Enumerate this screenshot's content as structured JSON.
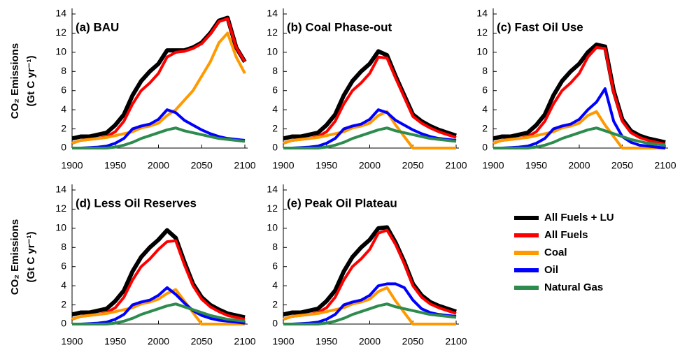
{
  "legend": [
    {
      "name": "All Fuels + LU",
      "color": "#000000"
    },
    {
      "name": "All Fuels",
      "color": "#ff0000"
    },
    {
      "name": "Coal",
      "color": "#ff9900"
    },
    {
      "name": "Oil",
      "color": "#0000ff"
    },
    {
      "name": "Natural Gas",
      "color": "#2e8b4e"
    }
  ],
  "chart_data": [
    {
      "type": "line",
      "title": "(a) BAU",
      "ylabel": [
        "CO₂ Emissions",
        "(Gt C yr⁻¹)"
      ],
      "x": [
        1900,
        1910,
        1920,
        1930,
        1940,
        1950,
        1960,
        1970,
        1980,
        1990,
        2000,
        2010,
        2020,
        2030,
        2040,
        2050,
        2060,
        2070,
        2080,
        2090,
        2100
      ],
      "xlim": [
        1900,
        2100
      ],
      "xticks": [
        1900,
        1950,
        2000,
        2050,
        2100
      ],
      "ylim": [
        0,
        14
      ],
      "yticks": [
        0,
        2,
        4,
        6,
        8,
        10,
        12,
        14
      ],
      "series": [
        {
          "values": [
            1.0,
            1.2,
            1.2,
            1.4,
            1.6,
            2.4,
            3.5,
            5.5,
            7.0,
            8.0,
            8.8,
            10.2,
            10.2,
            10.2,
            10.5,
            11.0,
            12.0,
            13.3,
            13.6,
            10.5,
            9.0
          ]
        },
        {
          "values": [
            0.5,
            0.8,
            0.9,
            1.0,
            1.2,
            1.7,
            2.8,
            4.6,
            6.0,
            6.8,
            7.8,
            9.5,
            10.0,
            10.1,
            10.4,
            10.9,
            11.9,
            13.2,
            13.5,
            10.5,
            9.0
          ]
        },
        {
          "values": [
            0.5,
            0.8,
            0.9,
            1.0,
            1.1,
            1.3,
            1.5,
            1.7,
            2.1,
            2.3,
            2.6,
            3.4,
            4.0,
            5.0,
            6.0,
            7.5,
            9.0,
            11.0,
            12.0,
            9.5,
            7.8
          ]
        },
        {
          "values": [
            0,
            0,
            0.05,
            0.1,
            0.2,
            0.5,
            1.0,
            2.0,
            2.3,
            2.5,
            3.0,
            4.0,
            3.7,
            2.9,
            2.4,
            1.9,
            1.5,
            1.2,
            1.0,
            0.9,
            0.8
          ]
        },
        {
          "values": [
            0,
            0,
            0,
            0,
            0,
            0.1,
            0.3,
            0.6,
            1.0,
            1.3,
            1.6,
            1.9,
            2.1,
            1.8,
            1.6,
            1.4,
            1.2,
            1.0,
            0.9,
            0.8,
            0.7
          ]
        }
      ]
    },
    {
      "type": "line",
      "title": "(b) Coal Phase-out",
      "x": [
        1900,
        1910,
        1920,
        1930,
        1940,
        1950,
        1960,
        1970,
        1980,
        1990,
        2000,
        2010,
        2020,
        2030,
        2040,
        2050,
        2060,
        2070,
        2080,
        2090,
        2100
      ],
      "xlim": [
        1900,
        2100
      ],
      "xticks": [
        1900,
        1950,
        2000,
        2050,
        2100
      ],
      "ylim": [
        0,
        14
      ],
      "yticks": [
        0,
        2,
        4,
        6,
        8,
        10,
        12,
        14
      ],
      "series": [
        {
          "values": [
            1.0,
            1.2,
            1.2,
            1.4,
            1.6,
            2.4,
            3.5,
            5.5,
            7.0,
            8.0,
            8.8,
            10.1,
            9.7,
            7.5,
            5.5,
            3.5,
            2.8,
            2.3,
            1.9,
            1.6,
            1.3
          ]
        },
        {
          "values": [
            0.5,
            0.8,
            0.9,
            1.0,
            1.2,
            1.7,
            2.8,
            4.6,
            6.0,
            6.8,
            7.8,
            9.5,
            9.4,
            7.3,
            5.3,
            3.3,
            2.6,
            2.1,
            1.7,
            1.4,
            1.1
          ]
        },
        {
          "values": [
            0.5,
            0.8,
            0.9,
            1.0,
            1.1,
            1.3,
            1.5,
            1.7,
            2.1,
            2.3,
            2.6,
            3.4,
            3.8,
            2.4,
            1.2,
            0,
            0,
            0,
            0,
            0,
            0
          ]
        },
        {
          "values": [
            0,
            0,
            0.05,
            0.1,
            0.2,
            0.5,
            1.0,
            2.0,
            2.3,
            2.5,
            3.0,
            4.0,
            3.7,
            2.9,
            2.4,
            1.9,
            1.5,
            1.2,
            1.0,
            0.9,
            0.8
          ]
        },
        {
          "values": [
            0,
            0,
            0,
            0,
            0,
            0.1,
            0.3,
            0.6,
            1.0,
            1.3,
            1.6,
            1.9,
            2.1,
            1.8,
            1.6,
            1.4,
            1.2,
            1.0,
            0.9,
            0.8,
            0.7
          ]
        }
      ]
    },
    {
      "type": "line",
      "title": "(c) Fast Oil Use",
      "x": [
        1900,
        1910,
        1920,
        1930,
        1940,
        1950,
        1960,
        1970,
        1980,
        1990,
        2000,
        2010,
        2020,
        2030,
        2040,
        2050,
        2060,
        2070,
        2080,
        2090,
        2100
      ],
      "xlim": [
        1900,
        2100
      ],
      "xticks": [
        1900,
        1950,
        2000,
        2050,
        2100
      ],
      "ylim": [
        0,
        14
      ],
      "yticks": [
        0,
        2,
        4,
        6,
        8,
        10,
        12,
        14
      ],
      "series": [
        {
          "values": [
            1.0,
            1.2,
            1.2,
            1.4,
            1.6,
            2.4,
            3.5,
            5.5,
            7.0,
            8.0,
            8.8,
            10.0,
            10.8,
            10.6,
            6.0,
            3.0,
            1.8,
            1.3,
            1.0,
            0.8,
            0.6
          ]
        },
        {
          "values": [
            0.5,
            0.8,
            0.9,
            1.0,
            1.2,
            1.7,
            2.8,
            4.6,
            6.0,
            6.8,
            7.8,
            9.5,
            10.5,
            10.4,
            5.8,
            2.8,
            1.6,
            1.1,
            0.8,
            0.6,
            0.4
          ]
        },
        {
          "values": [
            0.5,
            0.8,
            0.9,
            1.0,
            1.1,
            1.3,
            1.5,
            1.7,
            2.1,
            2.3,
            2.6,
            3.4,
            3.8,
            2.4,
            1.2,
            0,
            0,
            0,
            0,
            0,
            0
          ]
        },
        {
          "values": [
            0,
            0,
            0.05,
            0.1,
            0.2,
            0.5,
            1.0,
            2.0,
            2.3,
            2.5,
            3.0,
            4.0,
            4.8,
            6.2,
            2.8,
            1.2,
            0.6,
            0.3,
            0.2,
            0.1,
            0
          ]
        },
        {
          "values": [
            0,
            0,
            0,
            0,
            0,
            0.1,
            0.3,
            0.6,
            1.0,
            1.3,
            1.6,
            1.9,
            2.1,
            1.8,
            1.5,
            1.2,
            0.9,
            0.7,
            0.5,
            0.4,
            0.3
          ]
        }
      ]
    },
    {
      "type": "line",
      "title": "(d) Less Oil Reserves",
      "ylabel": [
        "CO₂ Emissions",
        "(Gt C yr⁻¹)"
      ],
      "x": [
        1900,
        1910,
        1920,
        1930,
        1940,
        1950,
        1960,
        1970,
        1980,
        1990,
        2000,
        2010,
        2020,
        2030,
        2040,
        2050,
        2060,
        2070,
        2080,
        2090,
        2100
      ],
      "xlim": [
        1900,
        2100
      ],
      "xticks": [
        1900,
        1950,
        2000,
        2050,
        2100
      ],
      "ylim": [
        0,
        14
      ],
      "yticks": [
        0,
        2,
        4,
        6,
        8,
        10,
        12,
        14
      ],
      "series": [
        {
          "values": [
            1.0,
            1.2,
            1.2,
            1.4,
            1.6,
            2.4,
            3.5,
            5.5,
            7.0,
            8.0,
            8.8,
            9.8,
            9.0,
            6.5,
            4.2,
            2.8,
            2.0,
            1.5,
            1.1,
            0.9,
            0.7
          ]
        },
        {
          "values": [
            0.5,
            0.8,
            0.9,
            1.0,
            1.2,
            1.7,
            2.8,
            4.6,
            6.0,
            6.8,
            7.8,
            8.6,
            8.7,
            6.2,
            4.0,
            2.6,
            1.8,
            1.3,
            0.9,
            0.7,
            0.5
          ]
        },
        {
          "values": [
            0.5,
            0.8,
            0.9,
            1.0,
            1.1,
            1.3,
            1.5,
            1.7,
            2.1,
            2.3,
            2.6,
            3.2,
            3.6,
            2.4,
            1.2,
            0,
            0,
            0,
            0,
            0,
            0
          ]
        },
        {
          "values": [
            0,
            0,
            0.05,
            0.1,
            0.2,
            0.5,
            1.0,
            2.0,
            2.3,
            2.5,
            3.0,
            3.8,
            3.1,
            2.2,
            1.4,
            0.9,
            0.6,
            0.4,
            0.3,
            0.2,
            0.1
          ]
        },
        {
          "values": [
            0,
            0,
            0,
            0,
            0,
            0.1,
            0.3,
            0.6,
            1.0,
            1.3,
            1.6,
            1.9,
            2.1,
            1.8,
            1.5,
            1.2,
            0.9,
            0.7,
            0.5,
            0.4,
            0.3
          ]
        }
      ]
    },
    {
      "type": "line",
      "title": "(e) Peak Oil Plateau",
      "x": [
        1900,
        1910,
        1920,
        1930,
        1940,
        1950,
        1960,
        1970,
        1980,
        1990,
        2000,
        2010,
        2020,
        2030,
        2040,
        2050,
        2060,
        2070,
        2080,
        2090,
        2100
      ],
      "xlim": [
        1900,
        2100
      ],
      "xticks": [
        1900,
        1950,
        2000,
        2050,
        2100
      ],
      "ylim": [
        0,
        14
      ],
      "yticks": [
        0,
        2,
        4,
        6,
        8,
        10,
        12,
        14
      ],
      "series": [
        {
          "values": [
            1.0,
            1.2,
            1.2,
            1.4,
            1.6,
            2.4,
            3.5,
            5.5,
            7.0,
            8.0,
            8.8,
            10.0,
            10.1,
            8.5,
            6.5,
            4.2,
            3.0,
            2.3,
            1.9,
            1.6,
            1.3
          ]
        },
        {
          "values": [
            0.5,
            0.8,
            0.9,
            1.0,
            1.2,
            1.7,
            2.8,
            4.6,
            6.0,
            6.8,
            7.8,
            9.5,
            9.8,
            8.3,
            6.3,
            4.0,
            2.8,
            2.1,
            1.7,
            1.4,
            1.1
          ]
        },
        {
          "values": [
            0.5,
            0.8,
            0.9,
            1.0,
            1.1,
            1.3,
            1.5,
            1.7,
            2.1,
            2.3,
            2.6,
            3.4,
            3.8,
            2.4,
            1.2,
            0,
            0,
            0,
            0,
            0,
            0
          ]
        },
        {
          "values": [
            0,
            0,
            0.05,
            0.1,
            0.2,
            0.5,
            1.0,
            2.0,
            2.3,
            2.5,
            3.0,
            4.0,
            4.2,
            4.2,
            3.8,
            2.5,
            1.6,
            1.2,
            1.0,
            0.9,
            0.8
          ]
        },
        {
          "values": [
            0,
            0,
            0,
            0,
            0,
            0.1,
            0.3,
            0.6,
            1.0,
            1.3,
            1.6,
            1.9,
            2.1,
            1.8,
            1.6,
            1.4,
            1.2,
            1.0,
            0.9,
            0.8,
            0.7
          ]
        }
      ]
    }
  ]
}
